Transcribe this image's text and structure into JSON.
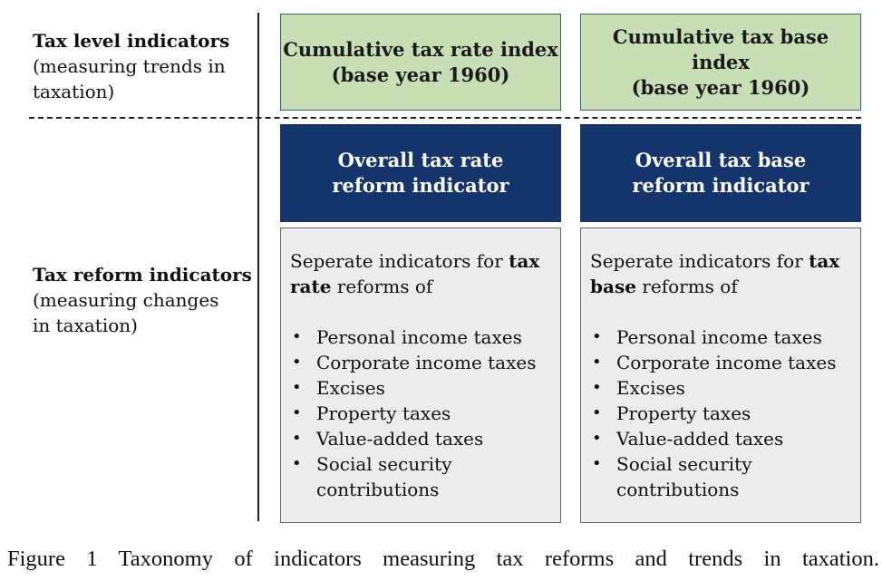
{
  "rows": {
    "level": {
      "title": "Tax level indicators",
      "desc_line1": "(measuring trends in",
      "desc_line2": "taxation)"
    },
    "reform": {
      "title": "Tax reform indicators",
      "desc_line1": "(measuring changes",
      "desc_line2": "in taxation)"
    }
  },
  "columns": [
    {
      "index_line1": "Cumulative tax rate index",
      "index_line2": "(base year 1960)",
      "overall_line1": "Overall tax rate",
      "overall_line2": "reform indicator",
      "intro_pre": "Seperate indicators for ",
      "intro_bold_1": "tax",
      "intro_bold_2": "rate",
      "intro_post": " reforms of",
      "items": [
        "Personal income taxes",
        "Corporate income taxes",
        "Excises",
        "Property taxes",
        "Value-added taxes",
        "Social security",
        "contributions"
      ]
    },
    {
      "index_line1": "Cumulative tax base index",
      "index_line2": "(base year 1960)",
      "overall_line1": "Overall tax base",
      "overall_line2": "reform indicator",
      "intro_pre": "Seperate indicators for ",
      "intro_bold_1": "tax",
      "intro_bold_2": "base",
      "intro_post": " reforms of",
      "items": [
        "Personal income taxes",
        "Corporate income taxes",
        "Excises",
        "Property taxes",
        "Value-added taxes",
        "Social security",
        "contributions"
      ]
    }
  ],
  "caption": "Figure 1 Taxonomy of indicators measuring tax reforms and trends in taxation.",
  "colors": {
    "green_fill": "#c8dfb6",
    "navy_fill": "#13356b",
    "grey_fill": "#ececec"
  }
}
